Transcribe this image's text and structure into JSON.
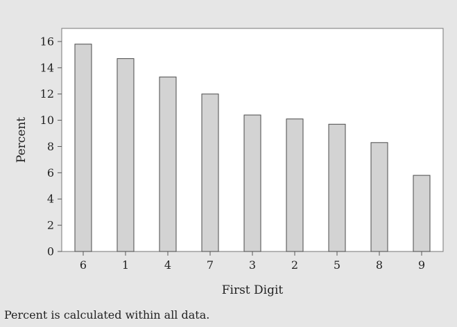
{
  "chart_data": {
    "type": "bar",
    "categories": [
      "6",
      "1",
      "4",
      "7",
      "3",
      "2",
      "5",
      "8",
      "9"
    ],
    "values": [
      15.8,
      14.7,
      13.3,
      12.0,
      10.4,
      10.1,
      9.7,
      8.3,
      5.8
    ],
    "xlabel": "First Digit",
    "ylabel": "Percent",
    "ylim": [
      0,
      17
    ],
    "yticks": [
      0,
      2,
      4,
      6,
      8,
      10,
      12,
      14,
      16
    ],
    "grid": false,
    "colors": {
      "bar_fill": "#d3d3d3",
      "bar_stroke": "#4a4a4a",
      "plot_background": "#ffffff",
      "page_background": "#e6e6e6"
    }
  },
  "footnote": "Percent is calculated within all data."
}
